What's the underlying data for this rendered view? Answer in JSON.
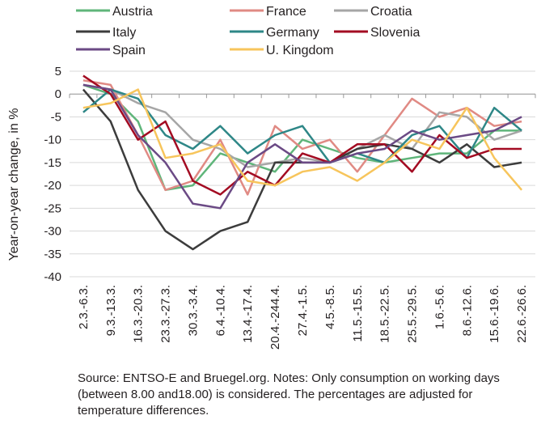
{
  "chart_data": {
    "type": "line",
    "title": "",
    "xlabel": "",
    "ylabel": "Year-on-year change, in %",
    "ylim": [
      -40,
      5
    ],
    "yticks": [
      5,
      0,
      -5,
      -10,
      -15,
      -20,
      -25,
      -30,
      -35,
      -40
    ],
    "grid": "horizontal",
    "legend_position": "top",
    "categories": [
      "2.3.-6.3.",
      "9.3.-13.3.",
      "16.3.-20.3.",
      "23.3.-27.3.",
      "30.3.-3.4.",
      "6.4.-10.4.",
      "13.4.-17.4.",
      "20.4.-244.4.",
      "27.4.-1.5.",
      "4.5.-8.5.",
      "11.5.-15.5.",
      "18.5.-22.5.",
      "25.5.-29.5.",
      "1.6.-5.6.",
      "8.6.-12.6.",
      "15.6.-19.6.",
      "22.6.-26.6."
    ],
    "series": [
      {
        "name": "Austria",
        "color": "#5fb57a",
        "values": [
          2,
          0,
          -6,
          -21,
          -20,
          -13,
          -15,
          -17,
          -10,
          -12,
          -14,
          -15,
          -14,
          -13,
          -13,
          -8,
          -8
        ]
      },
      {
        "name": "France",
        "color": "#e08a84",
        "values": [
          3,
          2,
          -9,
          -21,
          -19,
          -10,
          -22,
          -7,
          -12,
          -10,
          -17,
          -9,
          -1,
          -5,
          -3,
          -7,
          -6
        ]
      },
      {
        "name": "Croatia",
        "color": "#a6a6a6",
        "values": [
          2,
          1,
          -2,
          -4,
          -10,
          -12,
          -16,
          -15,
          -14,
          -15,
          -12,
          -9,
          -12,
          -4,
          -5,
          -10,
          -8
        ]
      },
      {
        "name": "Italy",
        "color": "#3c3c3c",
        "values": [
          1,
          -6,
          -21,
          -30,
          -34,
          -30,
          -28,
          -15,
          -15,
          -15,
          -12,
          -11,
          -12,
          -15,
          -11,
          -16,
          -15
        ]
      },
      {
        "name": "Germany",
        "color": "#2e8787",
        "values": [
          -4,
          1,
          -1,
          -9,
          -12,
          -7,
          -13,
          -9,
          -7,
          -15,
          -13,
          -15,
          -9,
          -7,
          -14,
          -3,
          -8
        ]
      },
      {
        "name": "Slovenia",
        "color": "#a30b22",
        "values": [
          4,
          0,
          -10,
          -6,
          -19,
          -22,
          -17,
          -20,
          -13,
          -15,
          -11,
          -11,
          -17,
          -9,
          -14,
          -12,
          -12
        ]
      },
      {
        "name": "Spain",
        "color": "#6b4a85",
        "values": [
          2,
          1,
          -9,
          -15,
          -24,
          -25,
          -15,
          -11,
          -15,
          -15,
          -13,
          -12,
          -8,
          -10,
          -9,
          -8,
          -5
        ]
      },
      {
        "name": "U. Kingdom",
        "color": "#f7c55c",
        "values": [
          -3,
          -2,
          1,
          -14,
          -13,
          -11,
          -19,
          -20,
          -17,
          -16,
          -19,
          -15,
          -10,
          -12,
          -3,
          -14,
          -21
        ]
      }
    ]
  },
  "source_note": "Source: ENTSO-E and Bruegel.org. Notes: Only consumption on working days (between 8.00 and18.00) is considered. The percentages are adjusted for temperature differences."
}
